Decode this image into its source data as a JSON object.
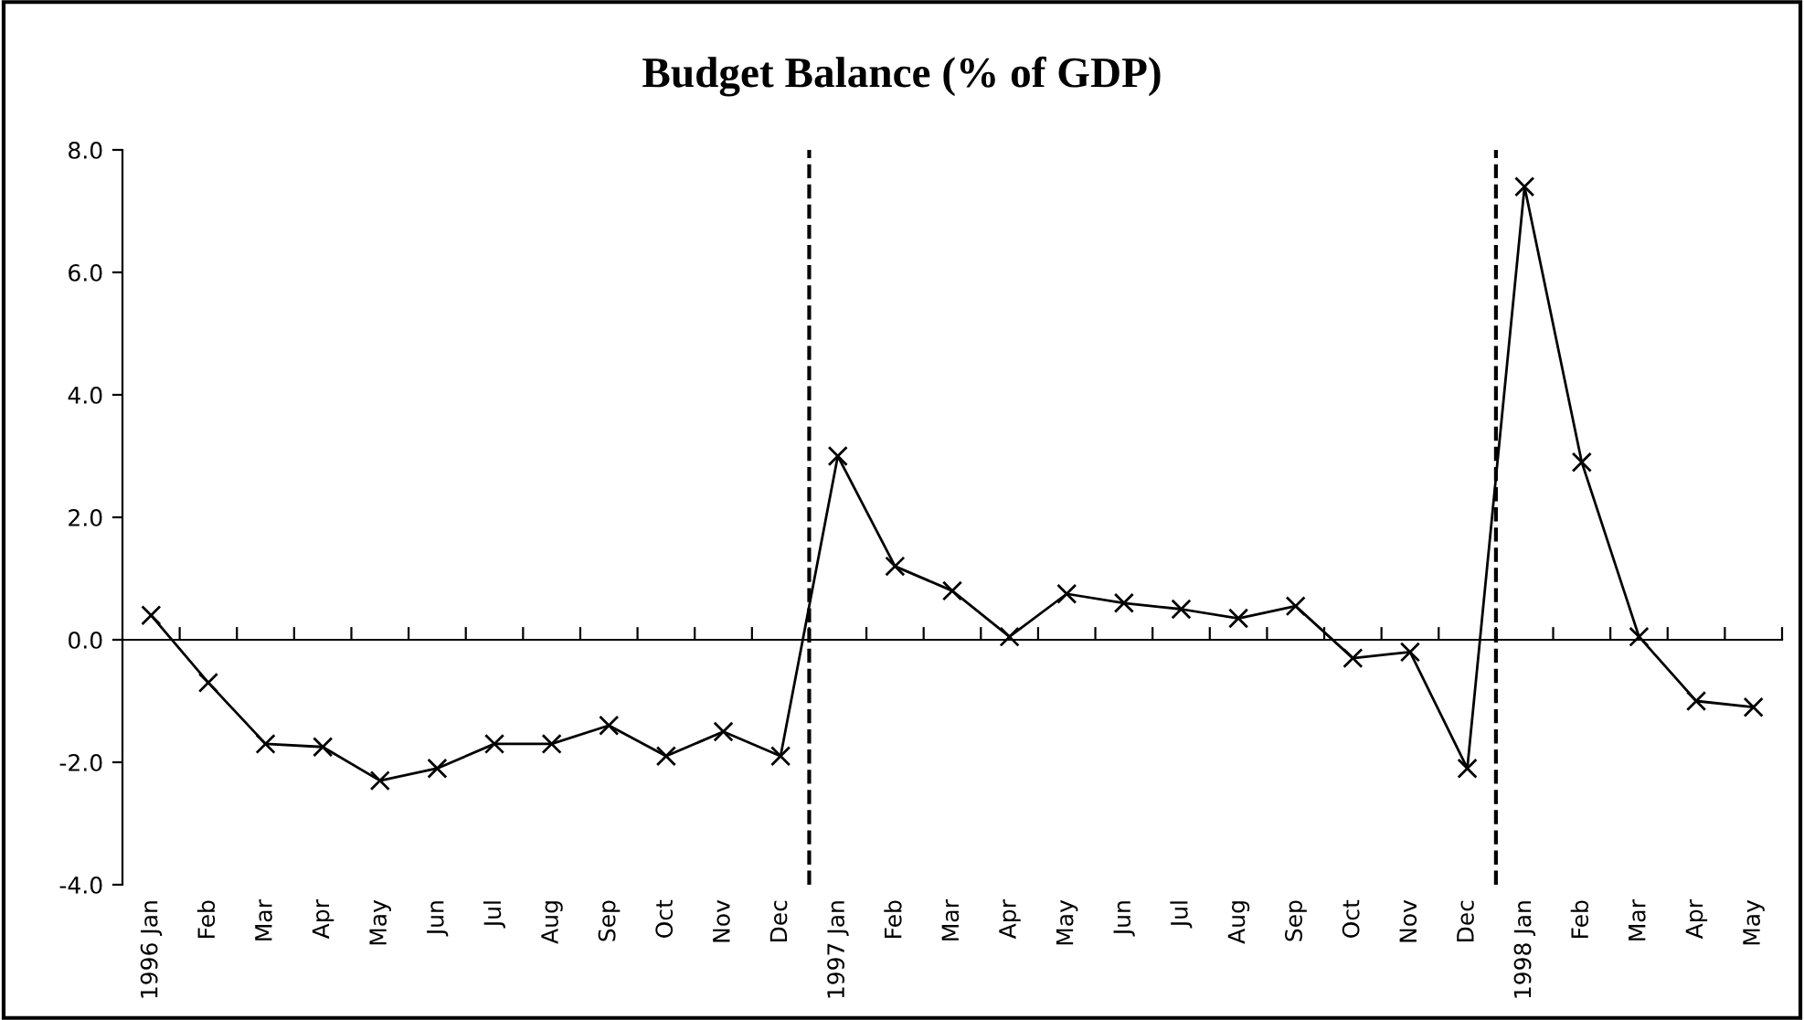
{
  "chart_data": {
    "type": "line",
    "title": "Budget Balance (% of GDP)",
    "categories": [
      "1996 Jan",
      "Feb",
      "Mar",
      "Apr",
      "May",
      "Jun",
      "Jul",
      "Aug",
      "Sep",
      "Oct",
      "Nov",
      "Dec",
      "1997 Jan",
      "Feb",
      "Mar",
      "Apr",
      "May",
      "Jun",
      "Jul",
      "Aug",
      "Sep",
      "Oct",
      "Nov",
      "Dec",
      "1998 Jan",
      "Feb",
      "Mar",
      "Apr",
      "May"
    ],
    "series": [
      {
        "color": "#000000",
        "values": [
          0.4,
          -0.7,
          -1.7,
          -1.75,
          -2.3,
          -2.1,
          -1.7,
          -1.7,
          -1.4,
          -1.9,
          -1.5,
          -1.9,
          3.0,
          1.2,
          0.8,
          0.05,
          0.75,
          0.6,
          0.5,
          0.35,
          0.55,
          -0.3,
          -0.2,
          -2.1,
          7.4,
          2.9,
          0.05,
          -1.0,
          -1.1
        ]
      }
    ],
    "ylim": [
      -4,
      8
    ],
    "yticks": [
      {
        "value": -4,
        "label": "-4.0"
      },
      {
        "value": -2,
        "label": "-2.0"
      },
      {
        "value": 0,
        "label": "0.0"
      },
      {
        "value": 2,
        "label": "2.0"
      },
      {
        "value": 4,
        "label": "4.0"
      },
      {
        "value": 6,
        "label": "6.0"
      },
      {
        "value": 8,
        "label": "8.0"
      }
    ],
    "marker": "cross",
    "line_style": "solid",
    "grid": false,
    "legend": false
  }
}
